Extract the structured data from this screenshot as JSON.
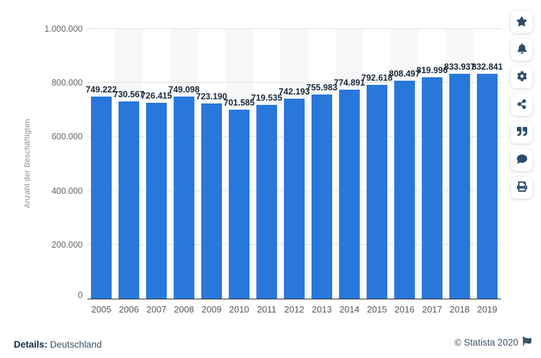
{
  "chart_data": {
    "type": "bar",
    "title": "",
    "categories": [
      "2005",
      "2006",
      "2007",
      "2008",
      "2009",
      "2010",
      "2011",
      "2012",
      "2013",
      "2014",
      "2015",
      "2016",
      "2017",
      "2018",
      "2019"
    ],
    "values": [
      749222,
      730567,
      726415,
      749098,
      723190,
      701585,
      719535,
      742193,
      755983,
      774891,
      792618,
      808497,
      819996,
      833937,
      832841
    ],
    "value_labels": [
      "749.222",
      "730.567",
      "726.415",
      "749.098",
      "723.190",
      "701.585",
      "719.535",
      "742.193",
      "755.983",
      "774.891",
      "792.618",
      "808.497",
      "819.996",
      "833.937",
      "832.841"
    ],
    "xlabel": "",
    "ylabel": "Anzahl der Beschäftigten",
    "ylim": [
      0,
      1000000
    ],
    "yticks": [
      0,
      200000,
      400000,
      600000,
      800000,
      1000000
    ],
    "ytick_labels": [
      "0",
      "200.000",
      "400.000",
      "600.000",
      "800.000",
      "1.000.000"
    ],
    "grid": "horizontal-dotted",
    "legend": "none",
    "bar_color": "#2878dc",
    "stripe_color": "#f8f8f9"
  },
  "sidebar": {
    "icons": [
      "star-icon",
      "bell-icon",
      "gear-icon",
      "share-icon",
      "quote-icon",
      "comment-icon",
      "print-icon"
    ]
  },
  "footer": {
    "details_label": "Details:",
    "details_value": "Deutschland",
    "copyright": "© Statista 2020"
  },
  "colors": {
    "bar": "#2878dc",
    "value_label": "#1b2a38",
    "ytick_text": "#666666",
    "xtick_text": "#555555",
    "icon": "#2e4d6b",
    "footer_text": "#3d5166",
    "details_label_text": "#0f2b4c"
  }
}
